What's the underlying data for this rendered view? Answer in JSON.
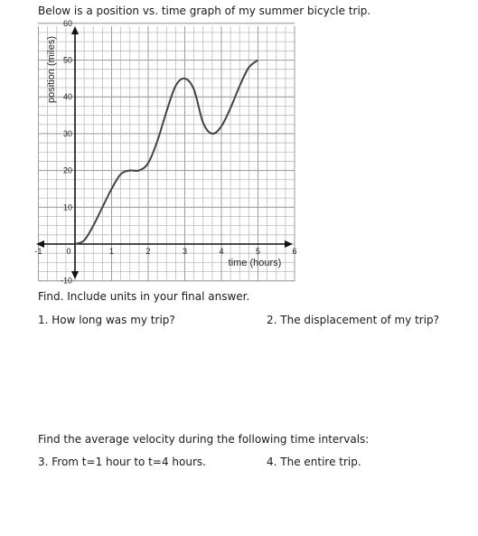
{
  "worksheet": {
    "intro": "Below is a position vs. time graph of my summer bicycle trip.",
    "instructions": "Find. Include units in your final answer.",
    "q1": "1. How long was my trip?",
    "q2": "2. The displacement of my trip?",
    "section2": "Find the average velocity during the following time intervals:",
    "q3": "3. From t=1 hour to t=4 hours.",
    "q4": "4. The entire trip."
  },
  "chart_data": {
    "type": "line",
    "xlabel": "time (hours)",
    "ylabel": "position (miles)",
    "xlim": [
      -1,
      6
    ],
    "ylim": [
      -10,
      60
    ],
    "x_ticks": [
      -1,
      0,
      1,
      2,
      3,
      4,
      5,
      6
    ],
    "y_ticks": [
      -10,
      10,
      20,
      30,
      40,
      50,
      60
    ],
    "grid": true,
    "series": [
      {
        "color": "#444444",
        "points": [
          [
            0,
            0
          ],
          [
            0.25,
            1
          ],
          [
            0.5,
            5
          ],
          [
            0.75,
            10
          ],
          [
            1,
            15
          ],
          [
            1.25,
            19
          ],
          [
            1.5,
            20
          ],
          [
            1.75,
            20
          ],
          [
            2,
            22
          ],
          [
            2.25,
            28
          ],
          [
            2.5,
            36
          ],
          [
            2.75,
            43
          ],
          [
            3,
            45
          ],
          [
            3.25,
            42
          ],
          [
            3.5,
            33
          ],
          [
            3.75,
            30
          ],
          [
            4,
            32
          ],
          [
            4.25,
            37
          ],
          [
            4.5,
            43
          ],
          [
            4.75,
            48
          ],
          [
            5,
            50
          ]
        ]
      }
    ]
  }
}
